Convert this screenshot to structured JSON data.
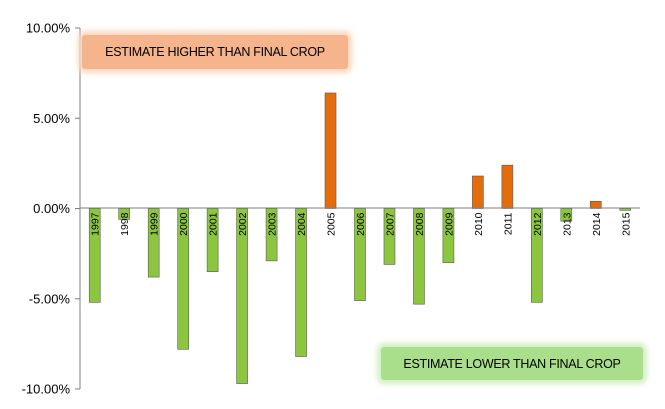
{
  "chart_data": {
    "type": "bar",
    "categories": [
      "1997",
      "1998",
      "1999",
      "2000",
      "2001",
      "2002",
      "2003",
      "2004",
      "2005",
      "2006",
      "2007",
      "2008",
      "2009",
      "2010",
      "2011",
      "2012",
      "2013",
      "2014",
      "2015"
    ],
    "values": [
      -5.2,
      -0.6,
      -3.8,
      -7.8,
      -3.5,
      -9.7,
      -2.9,
      -8.2,
      6.4,
      -5.1,
      -3.1,
      -5.3,
      -3.0,
      1.8,
      2.4,
      -5.2,
      -0.7,
      0.4,
      -0.1
    ],
    "ylim": [
      -10,
      10
    ],
    "yticks": [
      "10.00%",
      "5.00%",
      "0.00%",
      "-5.00%",
      "-10.00%"
    ],
    "ytick_values": [
      10,
      5,
      0,
      -5,
      -10
    ],
    "colors": {
      "positive": "#e46c0a",
      "negative": "#8cc63f",
      "outline": "#5a5a5a",
      "axis": "#7f7f7f"
    },
    "annotations": {
      "higher": "ESTIMATE HIGHER THAN FINAL CROP",
      "lower": "ESTIMATE LOWER THAN FINAL CROP"
    },
    "grid": false,
    "legend": "none"
  }
}
